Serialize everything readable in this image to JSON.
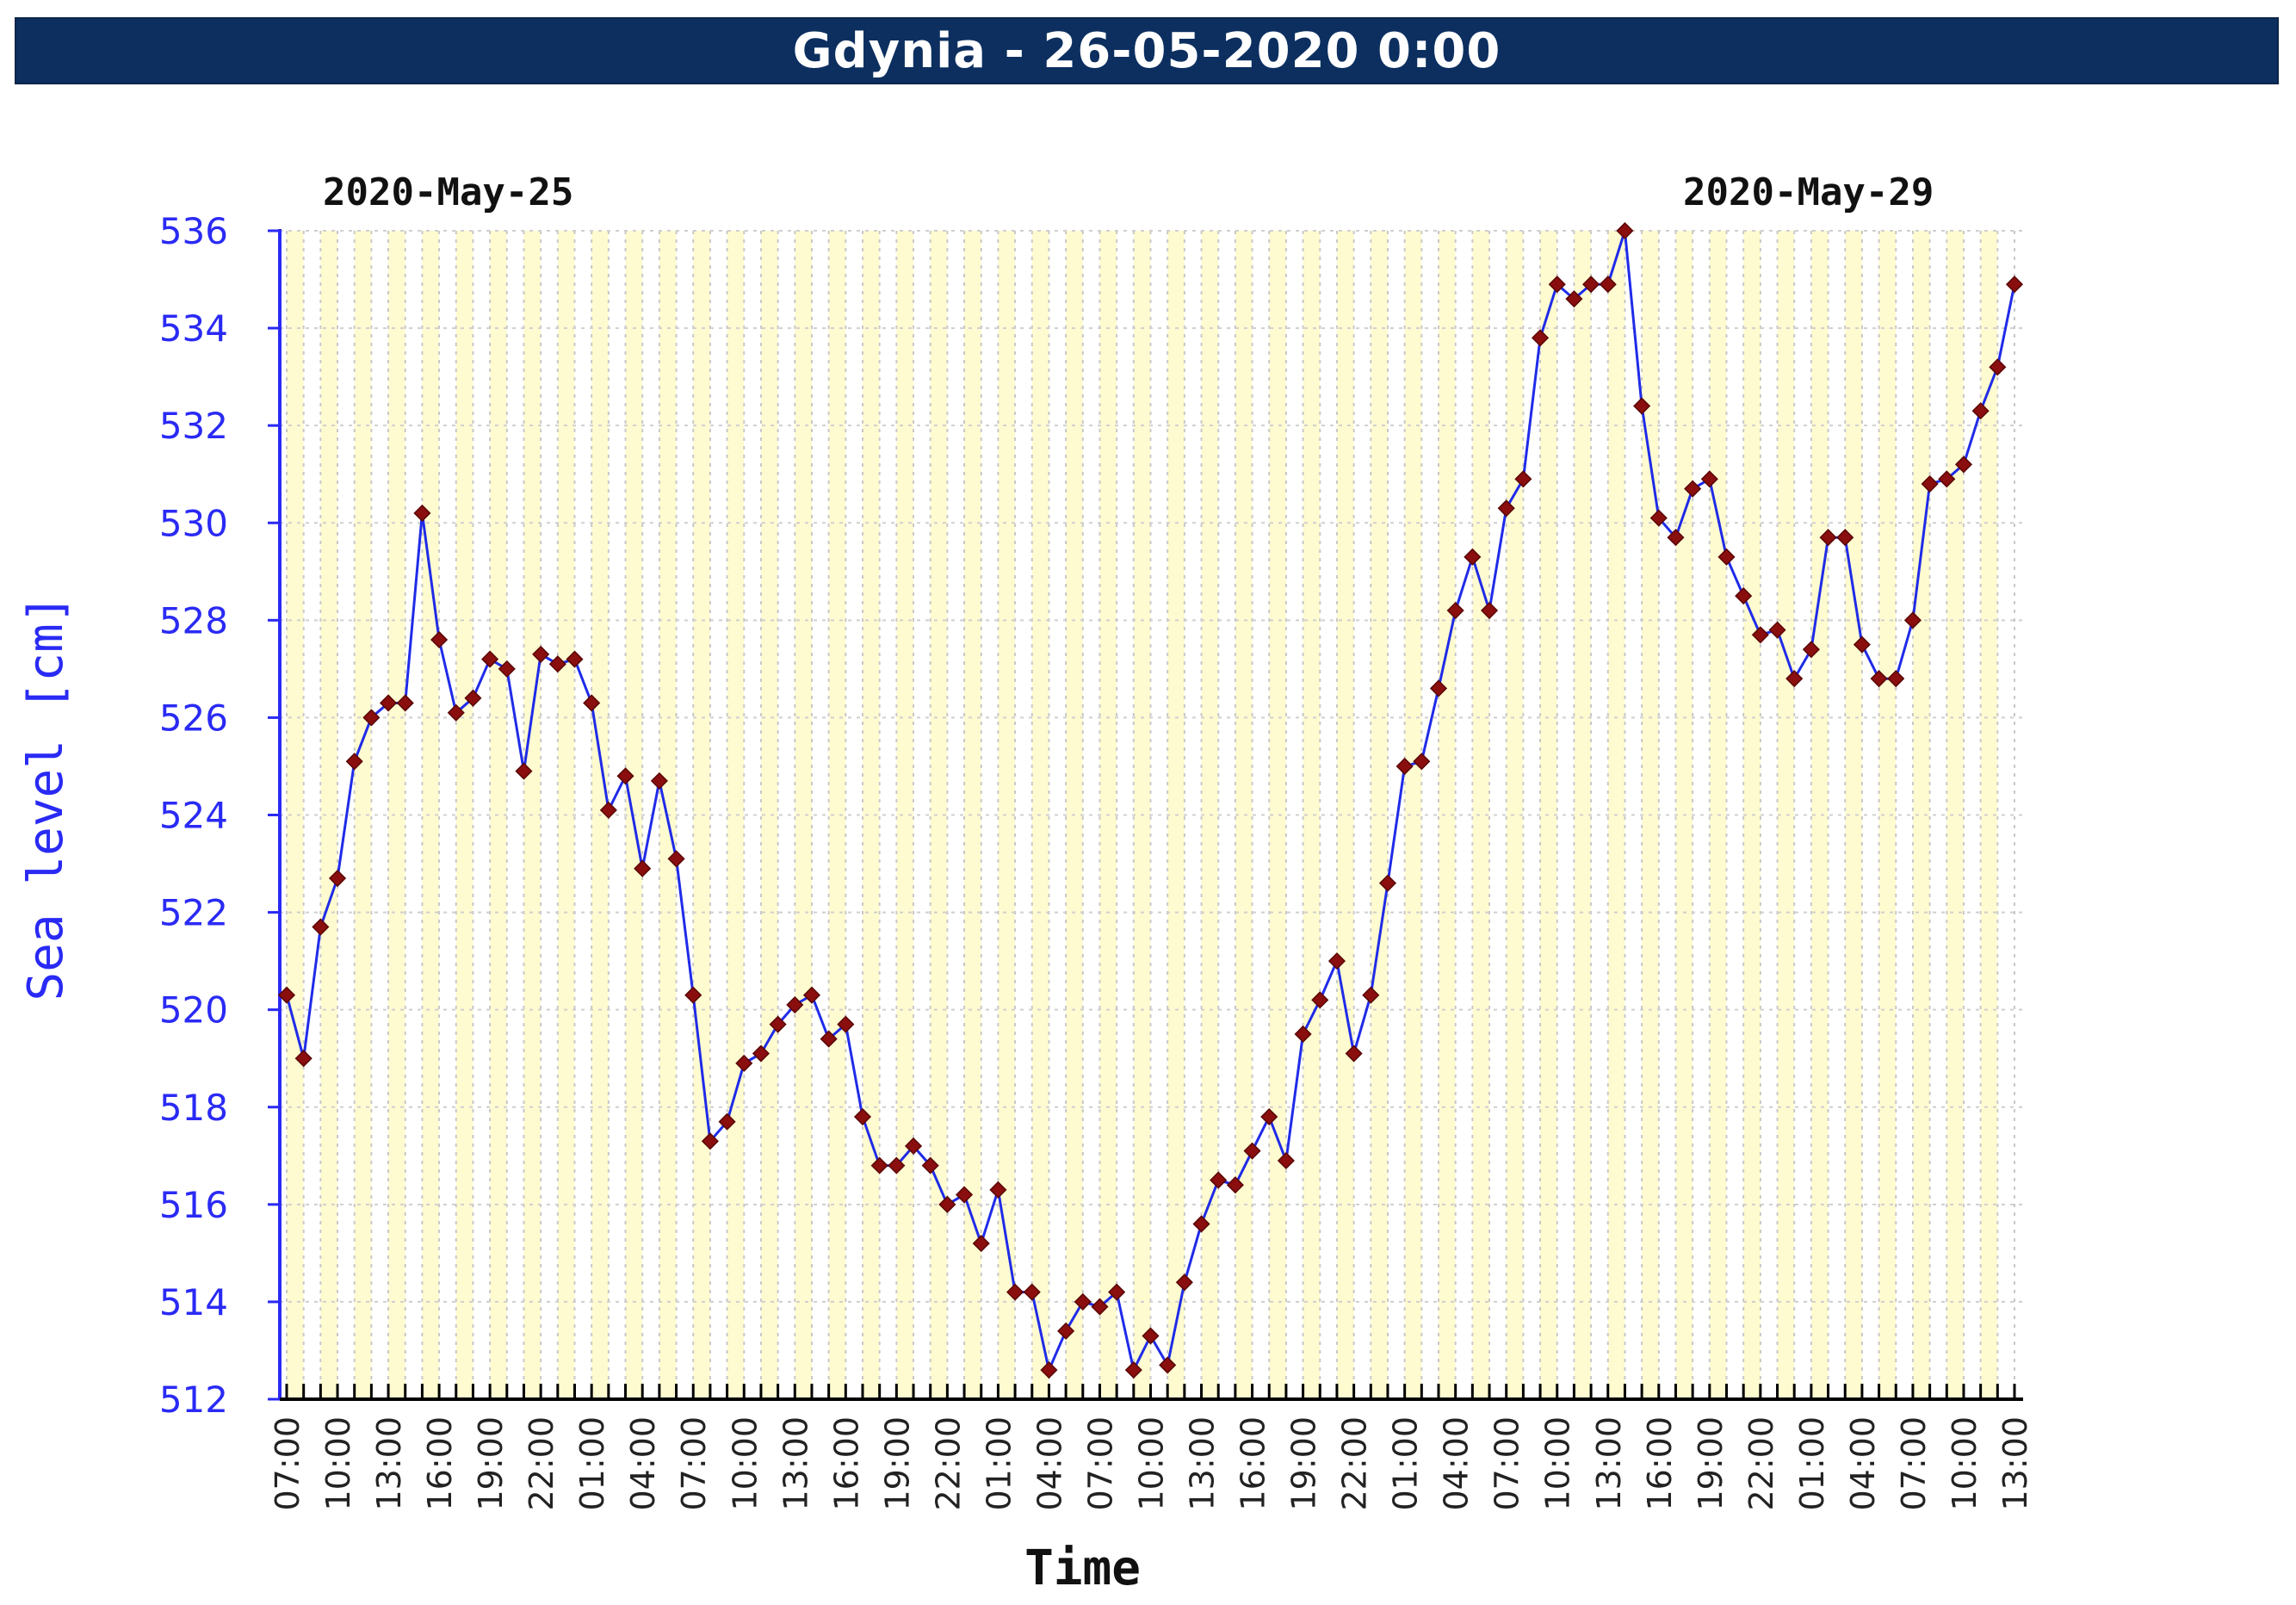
{
  "title": "Gdynia - 26-05-2020 0:00",
  "chart_data": {
    "type": "line",
    "title": "Gdynia - 26-05-2020 0:00",
    "xlabel": "Time",
    "ylabel": "Sea level [cm]",
    "ylim": [
      512,
      536
    ],
    "yticks": [
      512,
      514,
      516,
      518,
      520,
      522,
      524,
      526,
      528,
      530,
      532,
      534,
      536
    ],
    "date_labels": {
      "start": "2020-May-25",
      "end": "2020-May-29"
    },
    "xtick_labels": [
      "07:00",
      "10:00",
      "13:00",
      "16:00",
      "19:00",
      "22:00",
      "01:00",
      "04:00",
      "07:00",
      "10:00",
      "13:00",
      "16:00",
      "19:00",
      "22:00",
      "01:00",
      "04:00",
      "07:00",
      "10:00",
      "13:00",
      "16:00",
      "19:00",
      "22:00",
      "01:00",
      "04:00",
      "07:00",
      "10:00",
      "13:00",
      "16:00",
      "19:00",
      "22:00",
      "01:00",
      "04:00",
      "07:00",
      "10:00",
      "13:00"
    ],
    "x_hours_from": "2020-05-25 07:00",
    "x_hours_step": 1,
    "grid": true,
    "series": [
      {
        "values": [
          520.3,
          519.0,
          521.7,
          522.7,
          525.1,
          526.0,
          526.3,
          526.3,
          530.2,
          527.6,
          526.1,
          526.4,
          527.2,
          527.0,
          524.9,
          527.3,
          527.1,
          527.2,
          526.3,
          524.1,
          524.8,
          522.9,
          524.7,
          523.1,
          520.3,
          517.3,
          517.7,
          518.9,
          519.1,
          519.7,
          520.1,
          520.3,
          519.4,
          519.7,
          517.8,
          516.8,
          516.8,
          517.2,
          516.8,
          516.0,
          516.2,
          515.2,
          516.3,
          514.2,
          514.2,
          512.6,
          513.4,
          514.0,
          513.9,
          514.2,
          512.6,
          513.3,
          512.7,
          514.4,
          515.6,
          516.5,
          516.4,
          517.1,
          517.8,
          516.9,
          519.5,
          520.2,
          521.0,
          519.1,
          520.3,
          522.6,
          525.0,
          525.1,
          526.6,
          528.2,
          529.3,
          528.2,
          530.3,
          530.9,
          533.8,
          534.9,
          534.6,
          534.9,
          534.9,
          536.0,
          532.4,
          530.1,
          529.7,
          530.7,
          530.9,
          529.3,
          528.5,
          527.7,
          527.8,
          526.8,
          527.4,
          529.7,
          529.7,
          527.5,
          526.8,
          526.8,
          528.0,
          530.8,
          530.9,
          531.2,
          532.3,
          533.2,
          534.9
        ]
      }
    ],
    "colors": {
      "line": "#1f2be8",
      "marker": "#8a0e0e",
      "axis_text": "#2a2af5",
      "plot_bg": "#fffbd0",
      "grid": "#c8c8c8",
      "title_bar": "#0c2f60"
    }
  }
}
